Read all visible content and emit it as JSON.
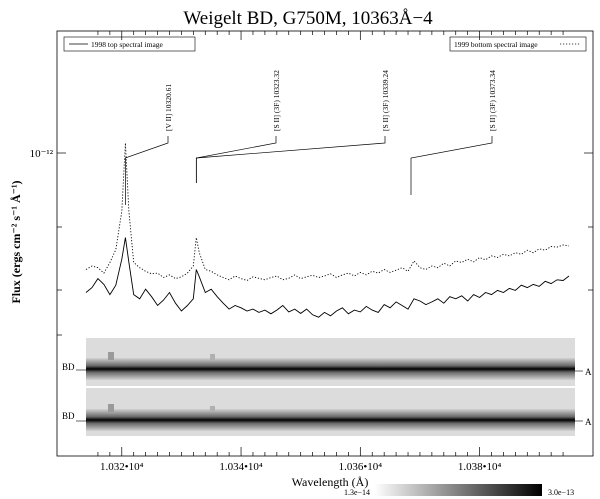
{
  "chart_data": {
    "type": "line",
    "title": "Weigelt BD, G750M, 10363Å−4",
    "xlabel": "Wavelength (Å)",
    "ylabel": "Flux (ergs cm⁻² s⁻¹ Å⁻¹)",
    "xlim": [
      10314,
      10396
    ],
    "ylim_label": "10⁻¹²",
    "x_ticks": [
      10320,
      10340,
      10360,
      10380
    ],
    "x_tick_labels": [
      "1.032•10⁴",
      "1.034•10⁴",
      "1.036•10⁴",
      "1.038•10⁴"
    ],
    "y_tick_label": "10⁻¹²",
    "scale": "log",
    "legend": {
      "left": "1998 top spectral image",
      "right": "1999 bottom spectral image",
      "placement": "top"
    },
    "series": [
      {
        "name": "1998 top spectral image",
        "style": "solid",
        "x": [
          10314.0,
          10315.0,
          10316.0,
          10317.0,
          10318.0,
          10319.0,
          10320.0,
          10320.6,
          10321.2,
          10322.0,
          10323.0,
          10324.0,
          10325.0,
          10326.0,
          10327.0,
          10328.0,
          10329.0,
          10330.0,
          10331.0,
          10332.0,
          10332.5,
          10333.0,
          10334.0,
          10335.0,
          10336.0,
          10337.0,
          10338.0,
          10339.0,
          10340.0,
          10341.0,
          10342.0,
          10343.0,
          10344.0,
          10345.0,
          10346.0,
          10347.0,
          10348.0,
          10349.0,
          10350.0,
          10351.0,
          10352.0,
          10353.0,
          10354.0,
          10355.0,
          10356.0,
          10357.0,
          10358.0,
          10359.0,
          10360.0,
          10361.0,
          10362.0,
          10363.0,
          10364.0,
          10365.0,
          10366.0,
          10367.0,
          10368.0,
          10369.0,
          10370.0,
          10371.0,
          10372.0,
          10373.0,
          10374.0,
          10375.0,
          10376.0,
          10377.0,
          10378.0,
          10379.0,
          10380.0,
          10381.0,
          10382.0,
          10383.0,
          10384.0,
          10385.0,
          10386.0,
          10387.0,
          10388.0,
          10389.0,
          10390.0,
          10391.0,
          10392.0,
          10393.0,
          10394.0,
          10395.0
        ],
        "values": [
          0.36,
          0.372,
          0.395,
          0.38,
          0.355,
          0.378,
          0.45,
          0.52,
          0.44,
          0.355,
          0.345,
          0.368,
          0.35,
          0.33,
          0.342,
          0.36,
          0.335,
          0.318,
          0.33,
          0.345,
          0.42,
          0.4,
          0.36,
          0.368,
          0.35,
          0.335,
          0.322,
          0.33,
          0.325,
          0.318,
          0.322,
          0.315,
          0.32,
          0.312,
          0.32,
          0.33,
          0.316,
          0.322,
          0.313,
          0.322,
          0.31,
          0.305,
          0.315,
          0.308,
          0.318,
          0.325,
          0.312,
          0.32,
          0.316,
          0.328,
          0.32,
          0.315,
          0.332,
          0.325,
          0.338,
          0.33,
          0.322,
          0.345,
          0.34,
          0.332,
          0.338,
          0.345,
          0.335,
          0.35,
          0.345,
          0.352,
          0.34,
          0.355,
          0.348,
          0.36,
          0.355,
          0.365,
          0.36,
          0.37,
          0.365,
          0.378,
          0.372,
          0.38,
          0.375,
          0.388,
          0.382,
          0.392,
          0.39,
          0.402
        ]
      },
      {
        "name": "1999 bottom spectral image",
        "style": "dotted",
        "x": [
          10314.0,
          10315.0,
          10316.0,
          10317.0,
          10318.0,
          10319.0,
          10320.0,
          10320.6,
          10321.2,
          10322.0,
          10323.0,
          10324.0,
          10325.0,
          10326.0,
          10327.0,
          10328.0,
          10329.0,
          10330.0,
          10331.0,
          10332.0,
          10332.5,
          10333.0,
          10334.0,
          10335.0,
          10336.0,
          10337.0,
          10338.0,
          10339.0,
          10340.0,
          10341.0,
          10342.0,
          10343.0,
          10344.0,
          10345.0,
          10346.0,
          10347.0,
          10348.0,
          10349.0,
          10350.0,
          10351.0,
          10352.0,
          10353.0,
          10354.0,
          10355.0,
          10356.0,
          10357.0,
          10358.0,
          10359.0,
          10360.0,
          10361.0,
          10362.0,
          10363.0,
          10364.0,
          10365.0,
          10366.0,
          10367.0,
          10368.0,
          10369.0,
          10370.0,
          10371.0,
          10372.0,
          10373.0,
          10374.0,
          10375.0,
          10376.0,
          10377.0,
          10378.0,
          10379.0,
          10380.0,
          10381.0,
          10382.0,
          10383.0,
          10384.0,
          10385.0,
          10386.0,
          10387.0,
          10388.0,
          10389.0,
          10390.0,
          10391.0,
          10392.0,
          10393.0,
          10394.0,
          10395.0
        ],
        "values": [
          0.42,
          0.43,
          0.425,
          0.41,
          0.44,
          0.48,
          0.62,
          0.98,
          0.62,
          0.44,
          0.425,
          0.415,
          0.408,
          0.41,
          0.398,
          0.405,
          0.395,
          0.4,
          0.41,
          0.43,
          0.52,
          0.47,
          0.42,
          0.415,
          0.405,
          0.398,
          0.392,
          0.402,
          0.395,
          0.39,
          0.4,
          0.396,
          0.392,
          0.398,
          0.402,
          0.392,
          0.396,
          0.405,
          0.395,
          0.4,
          0.404,
          0.398,
          0.402,
          0.408,
          0.398,
          0.405,
          0.41,
          0.402,
          0.412,
          0.405,
          0.415,
          0.41,
          0.42,
          0.412,
          0.418,
          0.425,
          0.415,
          0.445,
          0.425,
          0.42,
          0.43,
          0.425,
          0.438,
          0.43,
          0.445,
          0.44,
          0.45,
          0.442,
          0.455,
          0.448,
          0.46,
          0.455,
          0.465,
          0.46,
          0.47,
          0.465,
          0.478,
          0.47,
          0.482,
          0.478,
          0.49,
          0.488,
          0.495,
          0.492
        ]
      }
    ],
    "line_ids": [
      {
        "label": "[V II] 10320.61",
        "wavelength": 10320.6
      },
      {
        "label": "[S II] (3F) 10323.32",
        "wavelength": 10332.5
      },
      {
        "label": "[S II] (3F) 10339.24",
        "wavelength": 10332.5
      },
      {
        "label": "[S II] (3F) 10373.34",
        "wavelength": 10368.5
      }
    ],
    "spectral_image": {
      "rows": [
        {
          "left_label": "BD",
          "right_label": "A"
        },
        {
          "left_label": "BD",
          "right_label": "A"
        }
      ],
      "colorbar": {
        "min_label": "1.3e−14",
        "max_label": "3.0e−13"
      }
    }
  }
}
